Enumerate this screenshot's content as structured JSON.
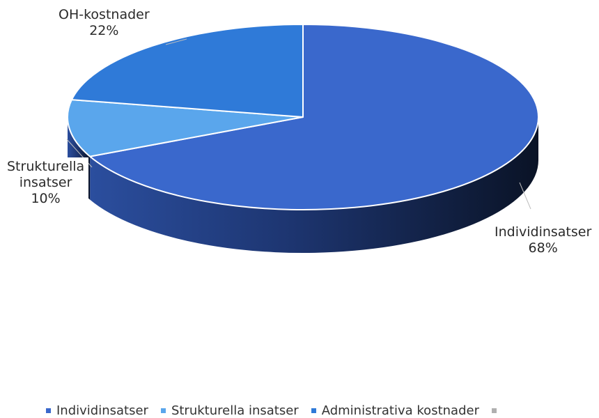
{
  "chart_data": {
    "type": "pie",
    "style": "3d",
    "slices": [
      {
        "name": "Individinsatser",
        "label": "Individinsatser",
        "value": 68,
        "value_label": "68%",
        "color": "#3a68cc"
      },
      {
        "name": "Strukturella insatser",
        "label": "Strukturella\ninsatser",
        "value": 10,
        "value_label": "10%",
        "color": "#5aa6ec"
      },
      {
        "name": "Administrativa kostnader",
        "label": "OH-kostnader",
        "value": 22,
        "value_label": "22%",
        "color": "#2f7ad8"
      }
    ],
    "legend": {
      "placement": "bottom",
      "items": [
        "Individinsatser",
        "Strukturella insatser",
        "Administrativa kostnader",
        ""
      ],
      "colors": [
        "#3a68cc",
        "#5aa6ec",
        "#2f7ad8",
        "#b0b0b0"
      ]
    }
  }
}
